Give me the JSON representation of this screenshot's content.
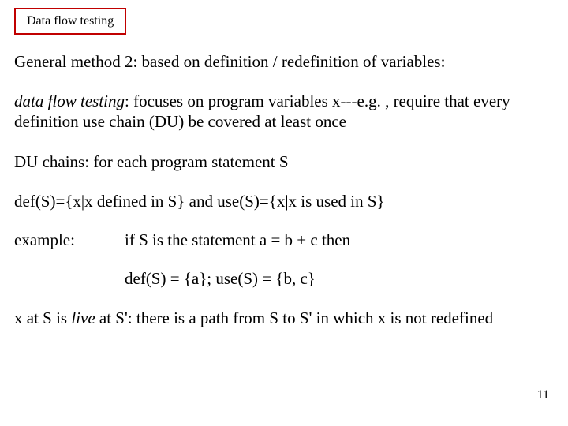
{
  "title_box": "Data flow testing",
  "heading": "General method 2:  based on definition / redefinition of variables:",
  "p1_italic": "data flow testing",
  "p1_rest": ":  focuses on program variables x---e.g. , require that every definition use chain (DU) be covered at least once",
  "p2": "DU chains: for each program statement S",
  "p3": "def(S)={x|x defined in S}  and  use(S)={x|x is used in S}",
  "example_label": "example:",
  "example_content": "if S is the statement    a = b + c   then",
  "example_line2": "def(S) = {a}; use(S) = {b, c}",
  "p4_a": "x at S is ",
  "p4_live": "live",
  "p4_b": " at S': there is a path from S to S' in which x is not redefined",
  "page_number": "11"
}
